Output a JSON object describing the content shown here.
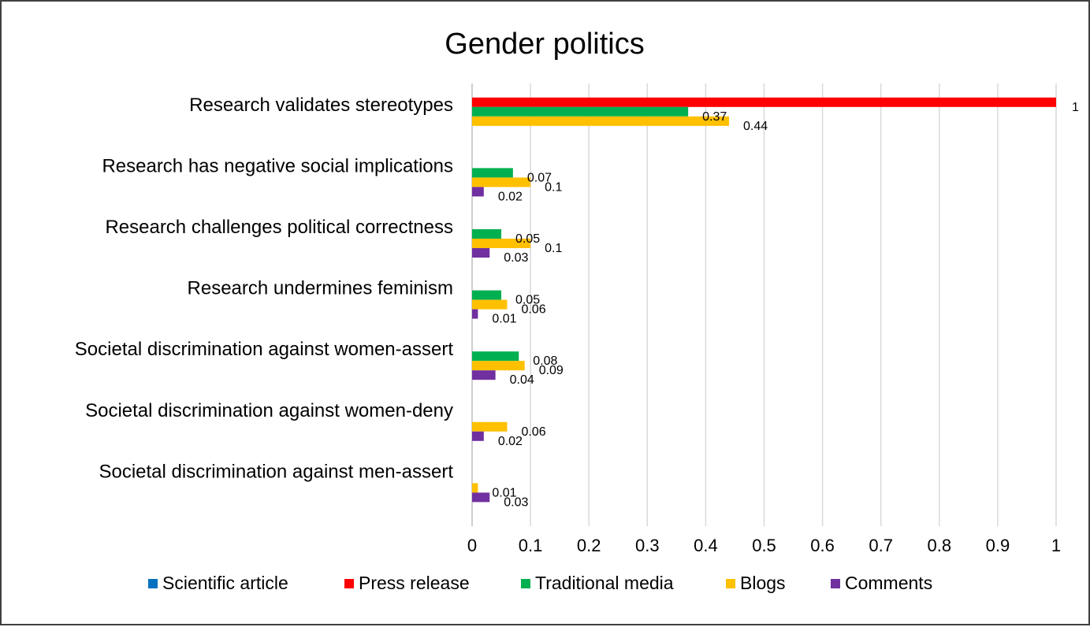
{
  "chart_data": {
    "type": "bar",
    "orientation": "horizontal",
    "title": "Gender politics",
    "xlim": [
      0,
      1
    ],
    "xticks": [
      0,
      0.1,
      0.2,
      0.3,
      0.4,
      0.5,
      0.6,
      0.7,
      0.8,
      0.9,
      1
    ],
    "xtick_labels": [
      "0",
      "0.1",
      "0.2",
      "0.3",
      "0.4",
      "0.5",
      "0.6",
      "0.7",
      "0.8",
      "0.9",
      "1"
    ],
    "grid": true,
    "legend_position": "bottom",
    "categories": [
      "Research validates stereotypes",
      "Research has negative social implications",
      "Research challenges political correctness",
      "Research undermines feminism",
      "Societal discrimination against women-assert",
      "Societal discrimination against women-deny",
      "Societal discrimination against men-assert"
    ],
    "series": [
      {
        "name": "Scientific article",
        "color": "#0070c0",
        "values": [
          null,
          null,
          null,
          null,
          null,
          null,
          null
        ]
      },
      {
        "name": "Press release",
        "color": "#ff0000",
        "values": [
          1,
          null,
          null,
          null,
          null,
          null,
          null
        ]
      },
      {
        "name": "Traditional media",
        "color": "#00b050",
        "values": [
          0.37,
          0.07,
          0.05,
          0.05,
          0.08,
          null,
          null
        ]
      },
      {
        "name": "Blogs",
        "color": "#ffc000",
        "values": [
          0.44,
          0.1,
          0.1,
          0.06,
          0.09,
          0.06,
          0.01
        ]
      },
      {
        "name": "Comments",
        "color": "#7030a0",
        "values": [
          null,
          0.02,
          0.03,
          0.01,
          0.04,
          0.02,
          0.03
        ]
      }
    ]
  }
}
